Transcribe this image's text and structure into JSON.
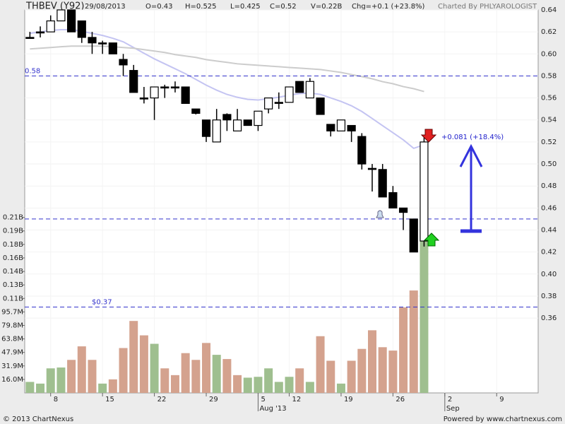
{
  "chart_data": {
    "type": "candlestick",
    "title": "THBEV (Y92)",
    "header": [
      "29/08/2013",
      "O=0.43",
      "H=0.525",
      "L=0.425",
      "C=0.52",
      "V=0.22B",
      "Chg=+0.1 (+23.8%)"
    ],
    "credit": "Charted By PHLYAROLOGIST",
    "footer_left": "© 2013 ChartNexus",
    "footer_right": "Powered by www.chartnexus.com",
    "xlim": [
      -0.5,
      49
    ],
    "xticks": [
      {
        "value": 2,
        "label": "8"
      },
      {
        "value": 7,
        "label": "15"
      },
      {
        "value": 12,
        "label": "22"
      },
      {
        "value": 17,
        "label": "29"
      },
      {
        "value": 22,
        "label": "5"
      },
      {
        "value": 25,
        "label": "12"
      },
      {
        "value": 30,
        "label": "19"
      },
      {
        "value": 35,
        "label": "26"
      },
      {
        "value": 40,
        "label": "2"
      },
      {
        "value": 45,
        "label": "9"
      }
    ],
    "month_labels": [
      {
        "value": 22,
        "label": "Aug '13"
      },
      {
        "value": 40,
        "label": "Sep"
      }
    ],
    "ylim": [
      0.292,
      0.64
    ],
    "yticks": [
      0.36,
      0.38,
      {
        "value": 0.4,
        "label": "0.40"
      },
      0.42,
      0.44,
      0.46,
      0.48,
      {
        "value": 0.5,
        "label": "0.50"
      },
      0.52,
      0.54,
      0.56,
      0.58,
      {
        "value": 0.6,
        "label": "0.60"
      },
      0.62,
      0.64
    ],
    "y2lim": [
      0,
      452.5
    ],
    "y2ticks": [
      {
        "value": 15.95,
        "label": "16.0M"
      },
      {
        "value": 31.9,
        "label": "31.9M"
      },
      {
        "value": 47.85,
        "label": "47.9M"
      },
      {
        "value": 63.8,
        "label": "63.8M"
      },
      {
        "value": 79.75,
        "label": "79.8M"
      },
      {
        "value": 95.7,
        "label": "95.7M"
      },
      {
        "value": 111.65,
        "label": "0.11B"
      },
      {
        "value": 127.6,
        "label": "0.13B"
      },
      {
        "value": 143.55,
        "label": "0.14B"
      },
      {
        "value": 159.5,
        "label": "0.16B"
      },
      {
        "value": 175.45,
        "label": "0.18B"
      },
      {
        "value": 191.4,
        "label": "0.19B"
      },
      {
        "value": 207.35,
        "label": "0.21B"
      }
    ],
    "grid": true,
    "open": [
      0.615,
      0.62,
      0.62,
      0.63,
      0.64,
      0.63,
      0.615,
      0.61,
      0.61,
      0.595,
      0.585,
      0.56,
      0.56,
      0.57,
      0.57,
      0.57,
      0.55,
      0.54,
      0.52,
      0.545,
      0.53,
      0.54,
      0.535,
      0.55,
      0.556,
      0.556,
      0.575,
      0.56,
      0.56,
      0.536,
      0.53,
      0.535,
      0.525,
      0.496,
      0.495,
      0.474,
      0.46,
      0.45,
      0.43
    ],
    "high": [
      0.62,
      0.625,
      0.635,
      0.64,
      0.64,
      0.63,
      0.62,
      0.612,
      0.61,
      0.6,
      0.59,
      0.57,
      0.57,
      0.572,
      0.575,
      0.57,
      0.55,
      0.54,
      0.55,
      0.546,
      0.55,
      0.54,
      0.548,
      0.56,
      0.565,
      0.57,
      0.575,
      0.578,
      0.56,
      0.536,
      0.54,
      0.535,
      0.528,
      0.5,
      0.5,
      0.48,
      0.46,
      0.45,
      0.525
    ],
    "low": [
      0.615,
      0.615,
      0.62,
      0.63,
      0.62,
      0.61,
      0.6,
      0.6,
      0.6,
      0.58,
      0.565,
      0.555,
      0.54,
      0.56,
      0.565,
      0.555,
      0.545,
      0.52,
      0.52,
      0.53,
      0.53,
      0.535,
      0.53,
      0.546,
      0.55,
      0.556,
      0.565,
      0.56,
      0.545,
      0.525,
      0.53,
      0.52,
      0.495,
      0.475,
      0.47,
      0.46,
      0.44,
      0.42,
      0.425
    ],
    "close": [
      0.615,
      0.62,
      0.63,
      0.64,
      0.62,
      0.615,
      0.61,
      0.61,
      0.6,
      0.59,
      0.565,
      0.56,
      0.57,
      0.57,
      0.57,
      0.555,
      0.546,
      0.525,
      0.54,
      0.54,
      0.54,
      0.535,
      0.548,
      0.56,
      0.556,
      0.57,
      0.565,
      0.575,
      0.545,
      0.53,
      0.54,
      0.53,
      0.5,
      0.496,
      0.47,
      0.46,
      0.456,
      0.42,
      0.52
    ],
    "volume": {
      "axis": "y2",
      "values": [
        13,
        11,
        29,
        30,
        39,
        55,
        39,
        11,
        16,
        53,
        85,
        68,
        58,
        29,
        21,
        47,
        39,
        59,
        45,
        40,
        21,
        18,
        19,
        29,
        13,
        19,
        29,
        13,
        67,
        38,
        11,
        38,
        52,
        74,
        54,
        50,
        101,
        121,
        220
      ],
      "colors": [
        "#9fbf8f",
        "#9fbf8f",
        "#9fbf8f",
        "#9fbf8f",
        "#d4a28e",
        "#d4a28e",
        "#d4a28e",
        "#9fbf8f",
        "#d4a28e",
        "#d4a28e",
        "#d4a28e",
        "#d4a28e",
        "#9fbf8f",
        "#d4a28e",
        "#d4a28e",
        "#d4a28e",
        "#d4a28e",
        "#d4a28e",
        "#9fbf8f",
        "#d4a28e",
        "#d4a28e",
        "#9fbf8f",
        "#9fbf8f",
        "#9fbf8f",
        "#9fbf8f",
        "#9fbf8f",
        "#d4a28e",
        "#9fbf8f",
        "#d4a28e",
        "#d4a28e",
        "#9fbf8f",
        "#d4a28e",
        "#d4a28e",
        "#d4a28e",
        "#d4a28e",
        "#d4a28e",
        "#d4a28e",
        "#d4a28e",
        "#9fbf8f"
      ]
    },
    "series": [
      {
        "color": "#c4c4f2",
        "values": [
          0.6187,
          0.62,
          0.6213,
          0.622,
          0.622,
          0.6206,
          0.6187,
          0.6168,
          0.6142,
          0.611,
          0.6058,
          0.6006,
          0.5955,
          0.591,
          0.5865,
          0.582,
          0.5768,
          0.5716,
          0.5671,
          0.5632,
          0.5606,
          0.5587,
          0.5581,
          0.5594,
          0.5606,
          0.5626,
          0.5639,
          0.5645,
          0.5632,
          0.56,
          0.5568,
          0.5529,
          0.5477,
          0.5413,
          0.5348,
          0.5284,
          0.5219,
          0.5142,
          0.5174
        ]
      },
      {
        "color": "#cccccc",
        "values": [
          0.6045,
          0.6052,
          0.6058,
          0.6065,
          0.6071,
          0.6071,
          0.6071,
          0.6071,
          0.6065,
          0.6058,
          0.6052,
          0.6039,
          0.6026,
          0.6013,
          0.5994,
          0.5981,
          0.5968,
          0.5948,
          0.5935,
          0.5923,
          0.591,
          0.5903,
          0.5897,
          0.589,
          0.5884,
          0.5877,
          0.5871,
          0.5865,
          0.5858,
          0.5845,
          0.5832,
          0.5813,
          0.5794,
          0.5774,
          0.5748,
          0.5729,
          0.5703,
          0.5684,
          0.5658
        ]
      }
    ],
    "levels": [
      {
        "value": 0.58,
        "label": "0.58"
      },
      {
        "value": 0.45
      },
      {
        "value": 0.37,
        "label": "$0.37"
      }
    ],
    "change_note": "+0.081 (+18.4%)"
  }
}
